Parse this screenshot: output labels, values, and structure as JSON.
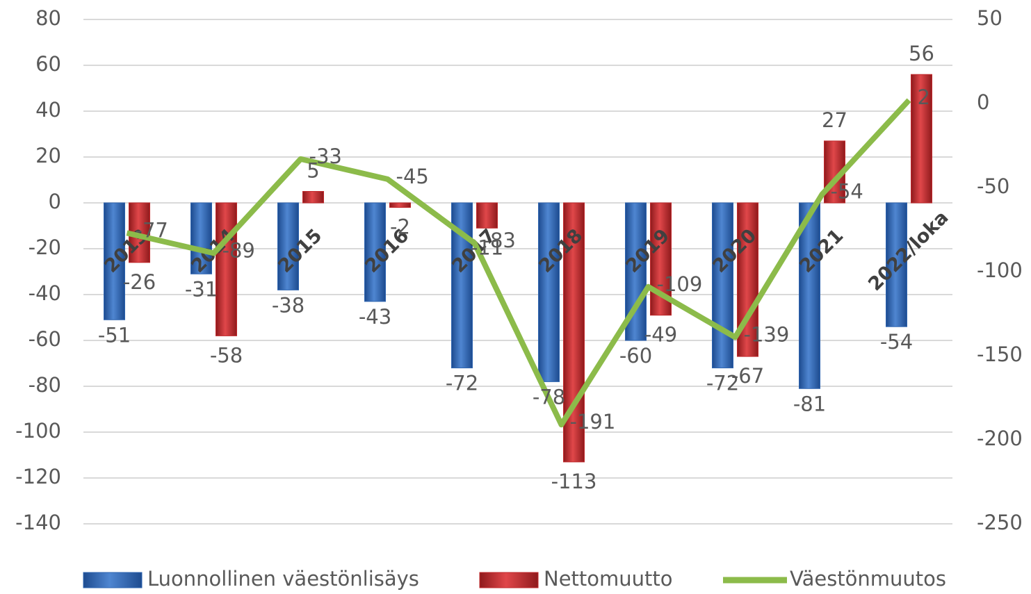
{
  "chart_data": {
    "type": "bar-line",
    "categories": [
      "2013",
      "2014",
      "2015",
      "2016",
      "2017",
      "2018",
      "2019",
      "2020",
      "2021",
      "2022/loka"
    ],
    "series": [
      {
        "name": "Luonnollinen väestönlisäys",
        "color": "#2e64b0",
        "type": "bar",
        "values": [
          -51,
          -31,
          -38,
          -43,
          -72,
          -78,
          -60,
          -72,
          -81,
          -54
        ]
      },
      {
        "name": "Nettomuutto",
        "color": "#c0282b",
        "type": "bar",
        "values": [
          -26,
          -58,
          5,
          -2,
          -11,
          -113,
          -49,
          -67,
          27,
          56
        ]
      },
      {
        "name": "Väestönmuutos",
        "color": "#8cbb4a",
        "type": "line",
        "axis": "y2",
        "values": [
          -77,
          -89,
          -33,
          -45,
          -83,
          -191,
          -109,
          -139,
          -54,
          2
        ]
      }
    ],
    "ylim": [
      -140,
      80
    ],
    "yticks": [
      -140,
      -120,
      -100,
      -80,
      -60,
      -40,
      -20,
      0,
      20,
      40,
      60,
      80
    ],
    "y2lim": [
      -250,
      50
    ],
    "y2ticks": [
      -250,
      -200,
      -150,
      -100,
      -50,
      0,
      50
    ],
    "grid": true,
    "legend": "bottom"
  }
}
